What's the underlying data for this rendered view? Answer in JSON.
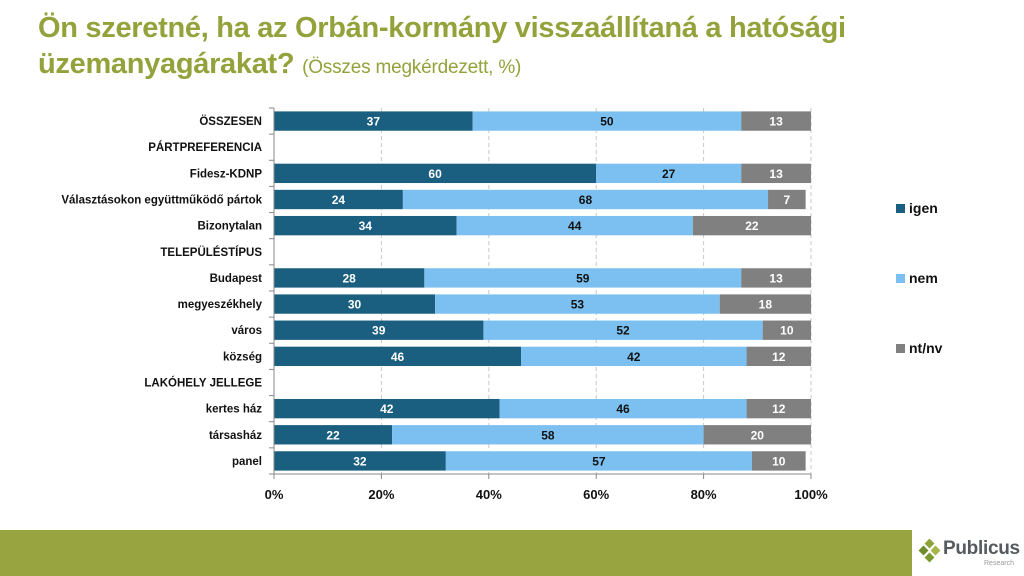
{
  "title": {
    "main": "Ön szeretné, ha az Orbán-kormány visszaállítaná a hatósági üzemanyagárakat?",
    "subtitle": "(Összes megkérdezett, %)"
  },
  "footer": {
    "logo_name": "Publicus",
    "logo_sub": "Research"
  },
  "chart_data": {
    "type": "bar",
    "orientation": "horizontal",
    "stacked": "percent",
    "title": "Ön szeretné, ha az Orbán-kormány visszaállítaná a hatósági üzemanyagárakat? (Összes megkérdezett, %)",
    "categories": [
      "ÖSSZESEN",
      "PÁRTPREFERENCIA",
      "Fidesz-KDNP",
      "Választásokon együttműködő pártok",
      "Bizonytalan",
      "TELEPÜLÉSTÍPUS",
      "Budapest",
      "megyeszékhely",
      "város",
      "község",
      "LAKÓHELY JELLEGE",
      "kertes ház",
      "társasház",
      "panel"
    ],
    "series": [
      {
        "name": "igen",
        "color": "#1a5e80",
        "label_color": "#ffffff",
        "values": [
          37,
          null,
          60,
          24,
          34,
          null,
          28,
          30,
          39,
          46,
          null,
          42,
          22,
          32
        ]
      },
      {
        "name": "nem",
        "color": "#7bc0f1",
        "label_color": "#111111",
        "values": [
          50,
          null,
          27,
          68,
          44,
          null,
          59,
          53,
          52,
          42,
          null,
          46,
          58,
          57
        ]
      },
      {
        "name": "nt/nv",
        "color": "#808080",
        "label_color": "#ffffff",
        "values": [
          13,
          null,
          13,
          7,
          22,
          null,
          13,
          18,
          10,
          12,
          null,
          12,
          20,
          10
        ]
      }
    ],
    "xlim": [
      0,
      100
    ],
    "xticks": [
      "0%",
      "20%",
      "40%",
      "60%",
      "80%",
      "100%"
    ],
    "xlabel": "",
    "ylabel": "",
    "grid": "vertical dashed",
    "legend": {
      "position": "right",
      "entries": [
        "igen",
        "nem",
        "nt/nv"
      ]
    }
  }
}
